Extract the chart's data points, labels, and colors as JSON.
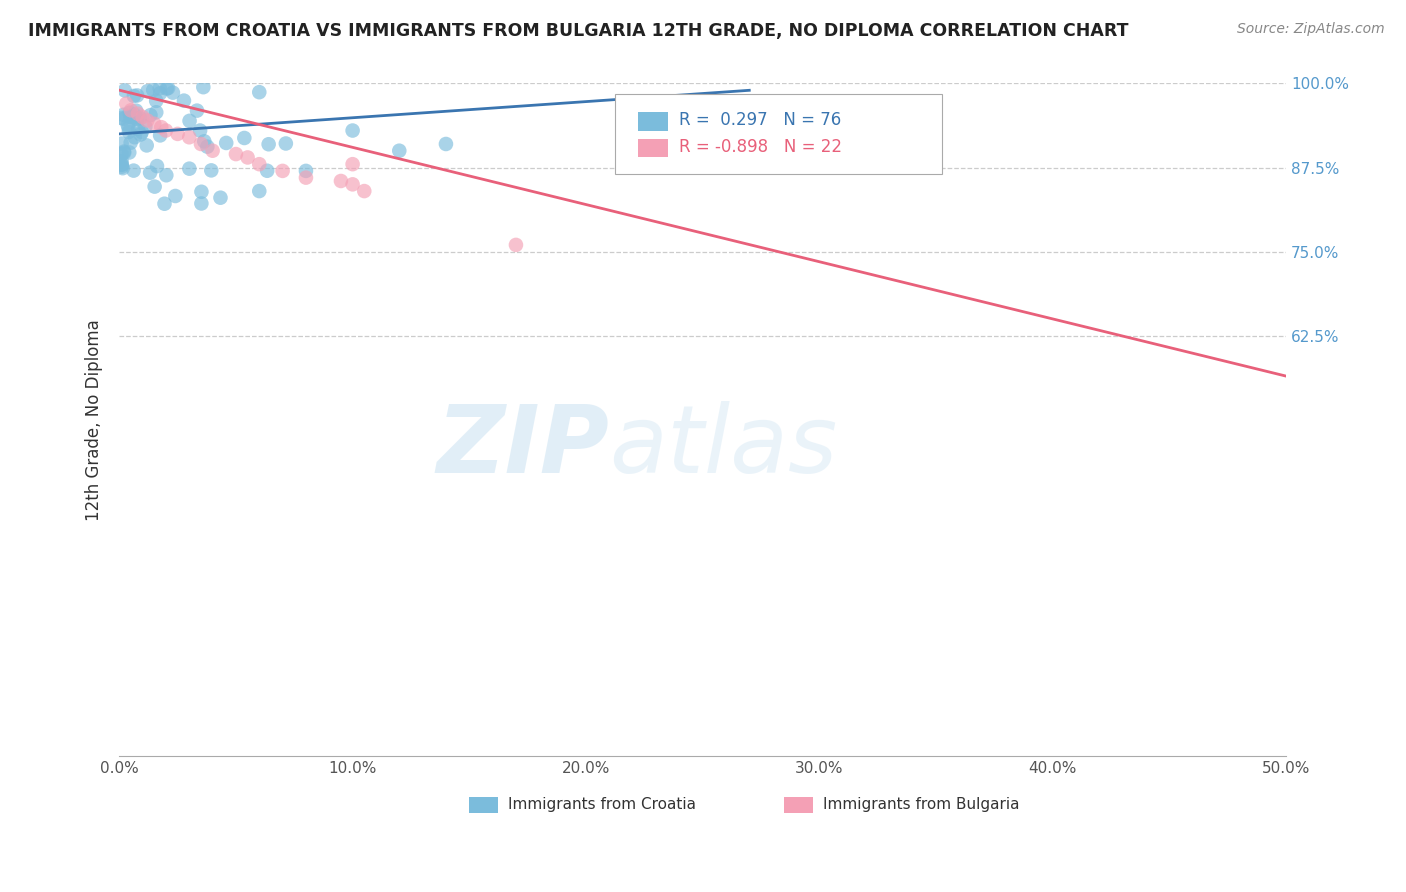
{
  "title": "IMMIGRANTS FROM CROATIA VS IMMIGRANTS FROM BULGARIA 12TH GRADE, NO DIPLOMA CORRELATION CHART",
  "source": "Source: ZipAtlas.com",
  "ylabel": "12th Grade, No Diploma",
  "xlim": [
    0.0,
    0.5
  ],
  "ylim": [
    0.0,
    1.0
  ],
  "xticks": [
    0.0,
    0.1,
    0.2,
    0.3,
    0.4,
    0.5
  ],
  "xticklabels": [
    "0.0%",
    "10.0%",
    "20.0%",
    "30.0%",
    "40.0%",
    "50.0%"
  ],
  "right_yticks": [
    1.0,
    0.875,
    0.75,
    0.625
  ],
  "right_yticklabels": [
    "100.0%",
    "87.5%",
    "75.0%",
    "62.5%"
  ],
  "croatia_R": 0.297,
  "croatia_N": 76,
  "bulgaria_R": -0.898,
  "bulgaria_N": 22,
  "croatia_color": "#7bbcdc",
  "bulgaria_color": "#f4a0b5",
  "croatia_line_color": "#3a75b0",
  "bulgaria_line_color": "#e8607a",
  "legend_labels": [
    "Immigrants from Croatia",
    "Immigrants from Bulgaria"
  ],
  "watermark": "ZIPatlas",
  "background_color": "#ffffff",
  "grid_color": "#cccccc",
  "title_color": "#222222",
  "right_ytick_color": "#5599cc",
  "grid_yticks": [
    0.625,
    0.75,
    0.875,
    1.0
  ]
}
